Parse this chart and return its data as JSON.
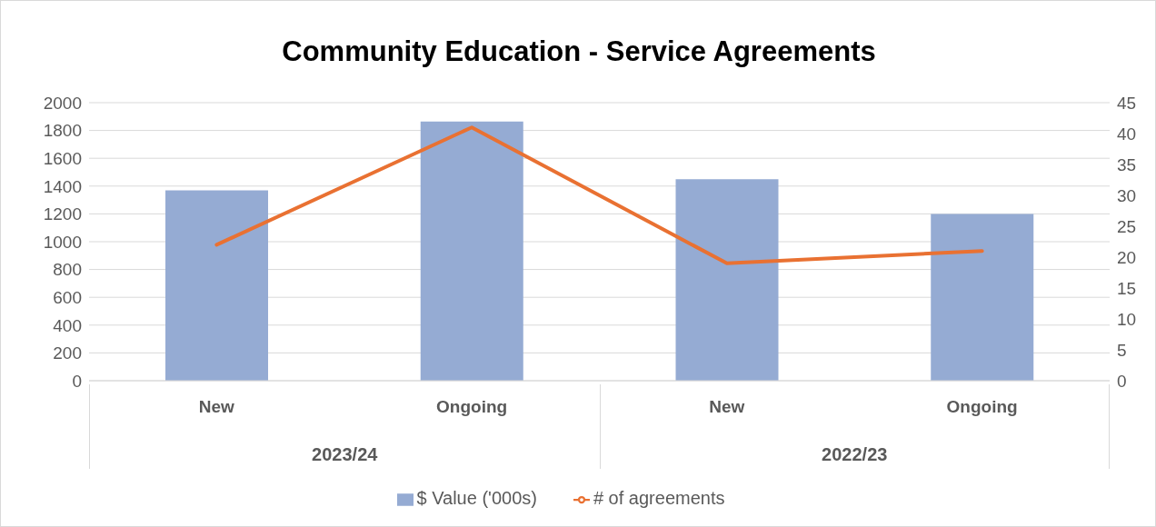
{
  "chart_data": {
    "type": "bar",
    "title": "Community Education - Service Agreements",
    "categories": [
      "New",
      "Ongoing",
      "New",
      "Ongoing"
    ],
    "series": [
      {
        "name": "$ Value ('000s)",
        "color": "#95abd3",
        "values": [
          1370,
          1865,
          1450,
          1200
        ]
      },
      {
        "name": "# of agreements",
        "type": "line",
        "axis": "y2",
        "color": "#e97132",
        "values": [
          22,
          41,
          19,
          21
        ]
      }
    ],
    "ylim": [
      0,
      2000
    ],
    "yticks": [
      0,
      200,
      400,
      600,
      800,
      1000,
      1200,
      1400,
      1600,
      1800,
      2000
    ],
    "y2lim": [
      0,
      45
    ],
    "y2ticks": [
      0,
      5,
      10,
      15,
      20,
      25,
      30,
      35,
      40,
      45
    ],
    "annotations": [
      "2023/24",
      "2022/23"
    ],
    "grid": "y",
    "legend": "bottom",
    "marker": "none",
    "line_style": "solid"
  }
}
